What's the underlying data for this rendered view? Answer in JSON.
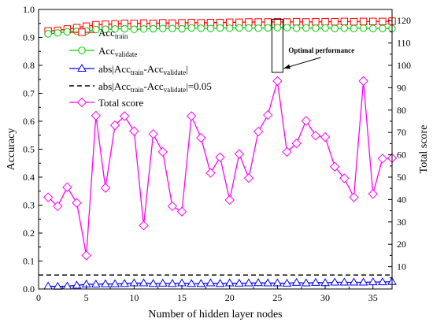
{
  "chart_data": {
    "type": "line",
    "xlabel": "Number of hidden layer nodes",
    "ylabel": "Accuracy",
    "y2label": "Total score",
    "xlim": [
      0,
      37
    ],
    "ylim": [
      0,
      1.0
    ],
    "y2lim": [
      0,
      125
    ],
    "xticks": [
      0,
      5,
      10,
      15,
      20,
      25,
      30,
      35
    ],
    "yticks": [
      0.0,
      0.1,
      0.2,
      0.3,
      0.4,
      0.5,
      0.6,
      0.7,
      0.8,
      0.9,
      1.0
    ],
    "y2ticks": [
      10,
      20,
      30,
      40,
      50,
      60,
      70,
      80,
      90,
      100,
      110,
      120
    ],
    "x": [
      1,
      2,
      3,
      4,
      5,
      6,
      7,
      8,
      9,
      10,
      11,
      12,
      13,
      14,
      15,
      16,
      17,
      18,
      19,
      20,
      21,
      22,
      23,
      24,
      25,
      26,
      27,
      28,
      29,
      30,
      31,
      32,
      33,
      34,
      35,
      36,
      37
    ],
    "series": [
      {
        "name": "Acc_train",
        "name_main": "Acc",
        "name_sub": "train",
        "axis": "left",
        "color": "#ff0000",
        "marker": "square",
        "values": [
          0.923,
          0.925,
          0.93,
          0.935,
          0.94,
          0.945,
          0.947,
          0.948,
          0.95,
          0.95,
          0.951,
          0.95,
          0.952,
          0.951,
          0.952,
          0.953,
          0.952,
          0.953,
          0.953,
          0.954,
          0.954,
          0.955,
          0.955,
          0.955,
          0.956,
          0.955,
          0.956,
          0.955,
          0.956,
          0.956,
          0.956,
          0.957,
          0.956,
          0.957,
          0.957,
          0.957,
          0.958
        ]
      },
      {
        "name": "Acc_validate",
        "name_main": "Acc",
        "name_sub": "validate",
        "axis": "left",
        "color": "#00cc00",
        "marker": "circle",
        "values": [
          0.913,
          0.916,
          0.92,
          0.922,
          0.923,
          0.928,
          0.929,
          0.93,
          0.931,
          0.929,
          0.93,
          0.931,
          0.932,
          0.932,
          0.931,
          0.934,
          0.933,
          0.932,
          0.934,
          0.933,
          0.934,
          0.934,
          0.933,
          0.934,
          0.935,
          0.935,
          0.933,
          0.934,
          0.933,
          0.934,
          0.932,
          0.933,
          0.932,
          0.933,
          0.932,
          0.932,
          0.932
        ]
      },
      {
        "name": "abs|Acc_train-Acc_validate|",
        "label_parts": [
          "abs|Acc",
          "train",
          "-Acc",
          "validate",
          "|"
        ],
        "axis": "left",
        "color": "#0000ff",
        "marker": "triangle",
        "values": [
          0.01,
          0.009,
          0.01,
          0.013,
          0.017,
          0.017,
          0.018,
          0.018,
          0.019,
          0.021,
          0.021,
          0.019,
          0.02,
          0.019,
          0.021,
          0.019,
          0.019,
          0.021,
          0.019,
          0.021,
          0.02,
          0.021,
          0.022,
          0.021,
          0.021,
          0.02,
          0.023,
          0.021,
          0.023,
          0.022,
          0.024,
          0.024,
          0.024,
          0.024,
          0.025,
          0.025,
          0.026
        ]
      },
      {
        "name": "abs|Acc_train-Acc_validate|=0.05",
        "label_parts": [
          "abs|Acc",
          "train",
          "-Acc",
          "validate",
          "|=0.05"
        ],
        "axis": "left",
        "color": "#000000",
        "style": "dashed",
        "constant": 0.05
      },
      {
        "name": "Total score",
        "axis": "right",
        "color": "#ff00ff",
        "marker": "diamond",
        "values": [
          41,
          37,
          45.5,
          38.5,
          15,
          77.5,
          45.2,
          73.2,
          77.3,
          70.6,
          28.4,
          69.3,
          61.3,
          37,
          34.6,
          77.3,
          67.6,
          51.9,
          58.9,
          39.8,
          60.4,
          49.6,
          70.4,
          77.8,
          93,
          61.3,
          65.1,
          75.2,
          68.6,
          67.9,
          54.7,
          49.5,
          41,
          93,
          42.5,
          58.3,
          58.5
        ]
      }
    ],
    "annotation": {
      "text": "Optimal performance",
      "x": 25
    },
    "legend": "top-left",
    "grid": false
  }
}
